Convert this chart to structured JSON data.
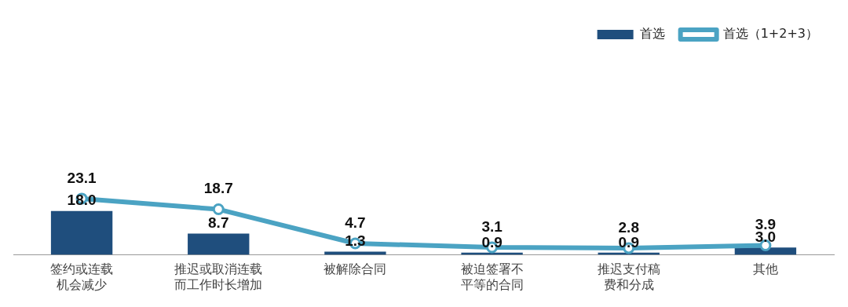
{
  "chart_data": {
    "type": "bar",
    "categories": [
      "签约或连载机会减少",
      "推迟或取消连载而工作时长增加",
      "被解除合同",
      "被迫签署不平等的合同",
      "推迟支付稿费和分成",
      "其他"
    ],
    "series": [
      {
        "name": "首选",
        "color": "#1f4e7d",
        "values": [
          18.0,
          8.7,
          1.3,
          0.9,
          0.9,
          3.0
        ],
        "value_labels": [
          "18.0",
          "8.7",
          "1.3",
          "0.9",
          "0.9",
          "3.0"
        ]
      },
      {
        "name": "首选（1+2+3）",
        "type": "line",
        "color": "#4ba3c3",
        "values": [
          23.1,
          18.7,
          4.7,
          3.1,
          2.8,
          3.9
        ]
      }
    ],
    "data_labels": true,
    "legend": "top right",
    "grid": false,
    "marker": "circle"
  }
}
